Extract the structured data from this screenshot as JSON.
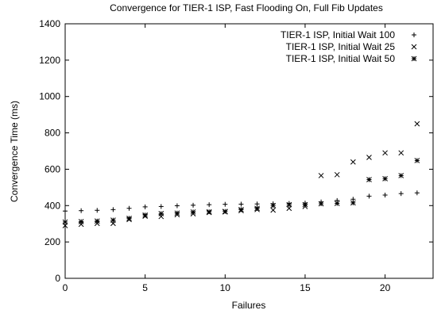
{
  "chart_data": {
    "type": "scatter",
    "title": "Convergence for TIER-1 ISP, Fast Flooding On, Full Fib Updates",
    "xlabel": "Failures",
    "ylabel": "Convergence Time (ms)",
    "xlim": [
      0,
      23
    ],
    "ylim": [
      0,
      1400
    ],
    "xticks": [
      "0",
      "5",
      "10",
      "15",
      "20"
    ],
    "yticks": [
      "0",
      "200",
      "400",
      "600",
      "800",
      "1000",
      "1200",
      "1400"
    ],
    "grid": false,
    "legend_position": "top-right",
    "series": [
      {
        "name": "TIER-1 ISP, Initial Wait 100",
        "marker": "plus",
        "x": [
          0,
          1,
          2,
          3,
          4,
          5,
          6,
          7,
          8,
          9,
          10,
          11,
          12,
          13,
          14,
          15,
          16,
          17,
          18,
          19,
          20,
          21,
          22
        ],
        "y": [
          370,
          372,
          374,
          378,
          385,
          393,
          395,
          399,
          402,
          405,
          407,
          408,
          409,
          410,
          412,
          414,
          420,
          428,
          435,
          452,
          458,
          466,
          470
        ]
      },
      {
        "name": "TIER-1 ISP, Initial Wait 25",
        "marker": "x",
        "x": [
          0,
          1,
          2,
          3,
          4,
          5,
          6,
          7,
          8,
          9,
          10,
          11,
          12,
          13,
          14,
          15,
          16,
          17,
          18,
          19,
          20,
          21,
          22
        ],
        "y": [
          290,
          297,
          302,
          302,
          323,
          342,
          340,
          350,
          355,
          362,
          365,
          372,
          378,
          375,
          385,
          395,
          565,
          570,
          640,
          665,
          690,
          690,
          850
        ]
      },
      {
        "name": "TIER-1 ISP, Initial Wait 50",
        "marker": "star",
        "x": [
          0,
          1,
          2,
          3,
          4,
          5,
          6,
          7,
          8,
          9,
          10,
          11,
          12,
          13,
          14,
          15,
          16,
          17,
          18,
          19,
          20,
          21,
          22
        ],
        "y": [
          310,
          312,
          315,
          320,
          330,
          348,
          356,
          359,
          365,
          366,
          368,
          378,
          385,
          400,
          405,
          405,
          410,
          412,
          415,
          543,
          548,
          565,
          648
        ]
      }
    ]
  }
}
